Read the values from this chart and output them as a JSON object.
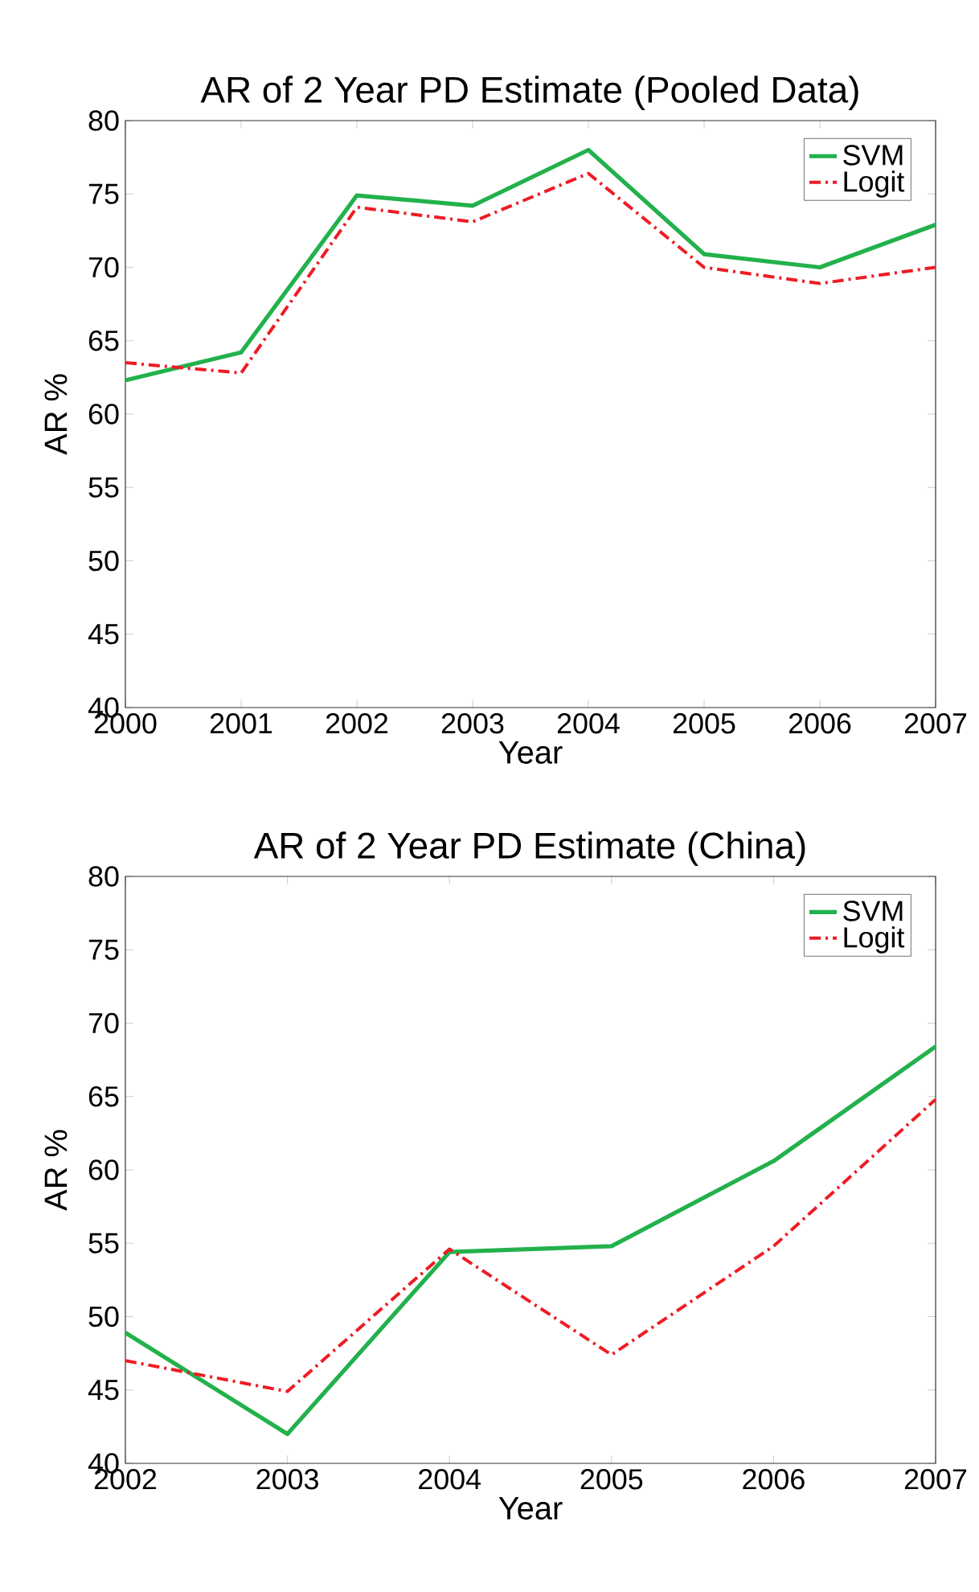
{
  "chart_data": [
    {
      "type": "line",
      "title": "AR of 2 Year PD Estimate (Pooled Data)",
      "xlabel": "Year",
      "ylabel": "AR %",
      "x": [
        2000,
        2001,
        2002,
        2003,
        2004,
        2005,
        2006,
        2007
      ],
      "xlim": [
        2000,
        2007
      ],
      "xticks": [
        2000,
        2001,
        2002,
        2003,
        2004,
        2005,
        2006,
        2007
      ],
      "ylim": [
        40,
        80
      ],
      "yticks": [
        40,
        45,
        50,
        55,
        60,
        65,
        70,
        75,
        80
      ],
      "legend": "top right",
      "grid": false,
      "series": [
        {
          "name": "SVM",
          "color": "#22b14c",
          "line_style": "solid",
          "values": [
            62.3,
            64.2,
            74.9,
            74.2,
            78.0,
            70.9,
            70.0,
            72.9
          ]
        },
        {
          "name": "Logit",
          "color": "#ee1c24",
          "line_style": "dashdot",
          "values": [
            63.5,
            62.8,
            74.1,
            73.1,
            76.4,
            70.0,
            68.9,
            70.0
          ]
        }
      ]
    },
    {
      "type": "line",
      "title": "AR of 2 Year PD Estimate (China)",
      "xlabel": "Year",
      "ylabel": "AR %",
      "x": [
        2002,
        2003,
        2004,
        2005,
        2006,
        2007
      ],
      "xlim": [
        2002,
        2007
      ],
      "xticks": [
        2002,
        2003,
        2004,
        2005,
        2006,
        2007
      ],
      "ylim": [
        40,
        80
      ],
      "yticks": [
        40,
        45,
        50,
        55,
        60,
        65,
        70,
        75,
        80
      ],
      "legend": "top right",
      "grid": false,
      "series": [
        {
          "name": "SVM",
          "color": "#22b14c",
          "line_style": "solid",
          "values": [
            48.9,
            42.0,
            54.4,
            54.8,
            60.6,
            68.4
          ]
        },
        {
          "name": "Logit",
          "color": "#ee1c24",
          "line_style": "dashdot",
          "values": [
            47.0,
            44.9,
            54.6,
            47.4,
            54.8,
            64.8
          ]
        }
      ]
    }
  ]
}
